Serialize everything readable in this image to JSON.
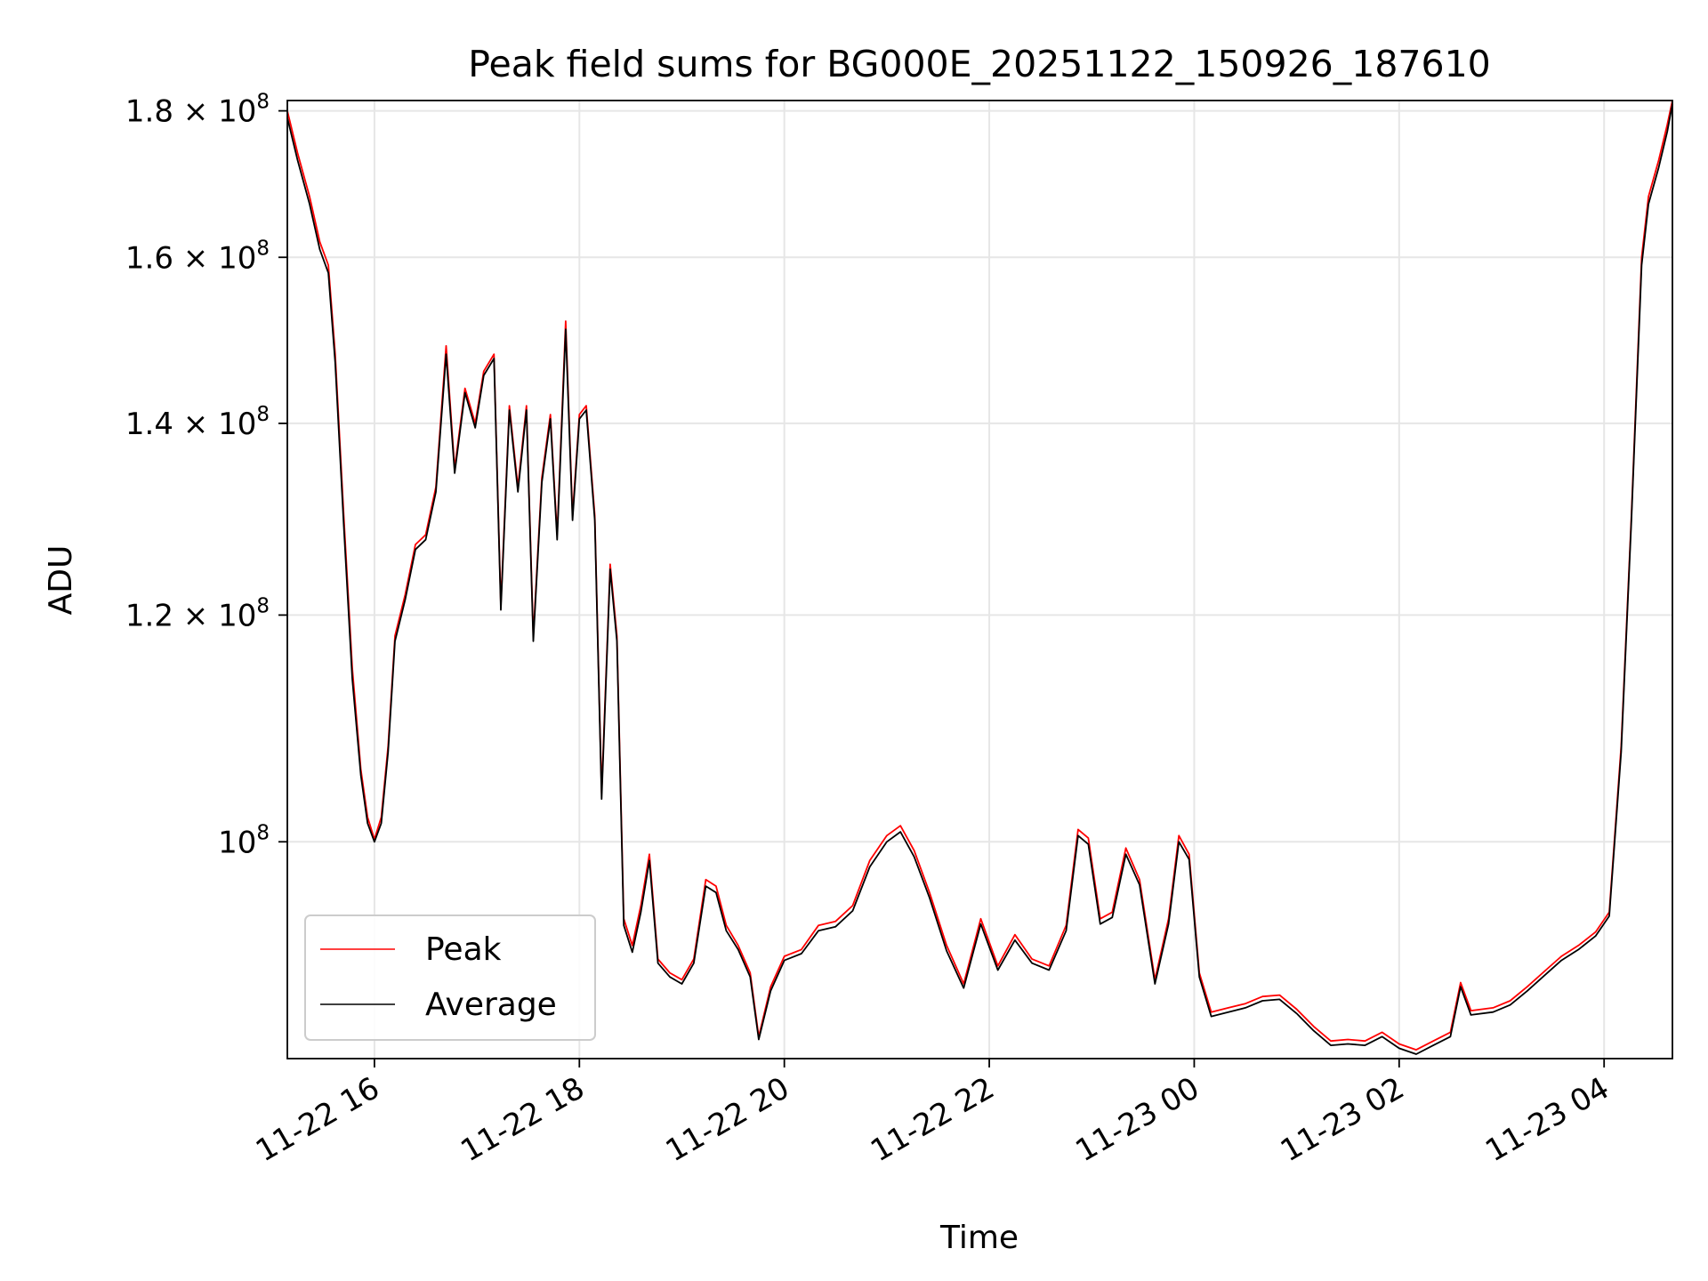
{
  "chart_data": {
    "type": "line",
    "title": "Peak field sums for BG000E_20251122_150926_187610",
    "xlabel": "Time",
    "ylabel": "ADU",
    "yscale": "log",
    "xlim": [
      "2025-11-22 15:09",
      "2025-11-23 04:40"
    ],
    "ylim": [
      84000000,
      181500000
    ],
    "xticks": [
      "11-22 16",
      "11-22 18",
      "11-22 20",
      "11-22 22",
      "11-23 00",
      "11-23 02",
      "11-23 04"
    ],
    "xtick_times": [
      "2025-11-22 16:00",
      "2025-11-22 18:00",
      "2025-11-22 20:00",
      "2025-11-22 22:00",
      "2025-11-23 00:00",
      "2025-11-23 02:00",
      "2025-11-23 04:00"
    ],
    "yticks": [
      {
        "value": 100000000,
        "mantissa": "",
        "exp": "8"
      },
      {
        "value": 120000000,
        "mantissa": "1.2",
        "exp": "8"
      },
      {
        "value": 140000000,
        "mantissa": "1.4",
        "exp": "8"
      },
      {
        "value": 160000000,
        "mantissa": "1.6",
        "exp": "8"
      },
      {
        "value": 180000000,
        "mantissa": "1.8",
        "exp": "8"
      }
    ],
    "grid": true,
    "legend_position": "lower-left",
    "series": [
      {
        "name": "Peak",
        "color": "#ff0000",
        "points": [
          [
            "2025-11-22 15:09",
            180000000
          ],
          [
            "2025-11-22 15:15",
            174000000
          ],
          [
            "2025-11-22 15:22",
            168000000
          ],
          [
            "2025-11-22 15:28",
            162000000
          ],
          [
            "2025-11-22 15:33",
            159000000
          ],
          [
            "2025-11-22 15:37",
            148000000
          ],
          [
            "2025-11-22 15:42",
            130000000
          ],
          [
            "2025-11-22 15:47",
            115000000
          ],
          [
            "2025-11-22 15:52",
            106000000
          ],
          [
            "2025-11-22 15:56",
            102000000
          ],
          [
            "2025-11-22 16:00",
            100200000
          ],
          [
            "2025-11-22 16:04",
            102000000
          ],
          [
            "2025-11-22 16:08",
            108000000
          ],
          [
            "2025-11-22 16:12",
            118000000
          ],
          [
            "2025-11-22 16:18",
            122000000
          ],
          [
            "2025-11-22 16:24",
            127000000
          ],
          [
            "2025-11-22 16:30",
            128000000
          ],
          [
            "2025-11-22 16:36",
            133000000
          ],
          [
            "2025-11-22 16:42",
            149000000
          ],
          [
            "2025-11-22 16:47",
            135000000
          ],
          [
            "2025-11-22 16:53",
            144000000
          ],
          [
            "2025-11-22 16:59",
            140000000
          ],
          [
            "2025-11-22 17:04",
            146000000
          ],
          [
            "2025-11-22 17:10",
            148000000
          ],
          [
            "2025-11-22 17:14",
            121000000
          ],
          [
            "2025-11-22 17:19",
            142000000
          ],
          [
            "2025-11-22 17:24",
            133000000
          ],
          [
            "2025-11-22 17:29",
            142000000
          ],
          [
            "2025-11-22 17:33",
            118000000
          ],
          [
            "2025-11-22 17:38",
            134000000
          ],
          [
            "2025-11-22 17:43",
            141000000
          ],
          [
            "2025-11-22 17:47",
            128000000
          ],
          [
            "2025-11-22 17:52",
            152000000
          ],
          [
            "2025-11-22 17:56",
            130000000
          ],
          [
            "2025-11-22 18:00",
            141000000
          ],
          [
            "2025-11-22 18:04",
            142000000
          ],
          [
            "2025-11-22 18:09",
            130000000
          ],
          [
            "2025-11-22 18:13",
            104000000
          ],
          [
            "2025-11-22 18:18",
            125000000
          ],
          [
            "2025-11-22 18:22",
            118000000
          ],
          [
            "2025-11-22 18:26",
            94000000
          ],
          [
            "2025-11-22 18:31",
            92000000
          ],
          [
            "2025-11-22 18:36",
            95000000
          ],
          [
            "2025-11-22 18:41",
            99000000
          ],
          [
            "2025-11-22 18:46",
            91000000
          ],
          [
            "2025-11-22 18:53",
            90000000
          ],
          [
            "2025-11-22 19:00",
            89500000
          ],
          [
            "2025-11-22 19:07",
            91000000
          ],
          [
            "2025-11-22 19:14",
            97000000
          ],
          [
            "2025-11-22 19:20",
            96500000
          ],
          [
            "2025-11-22 19:26",
            93500000
          ],
          [
            "2025-11-22 19:33",
            92000000
          ],
          [
            "2025-11-22 19:40",
            90000000
          ],
          [
            "2025-11-22 19:45",
            85500000
          ],
          [
            "2025-11-22 19:52",
            89000000
          ],
          [
            "2025-11-22 20:00",
            91200000
          ],
          [
            "2025-11-22 20:10",
            91700000
          ],
          [
            "2025-11-22 20:20",
            93500000
          ],
          [
            "2025-11-22 20:30",
            93800000
          ],
          [
            "2025-11-22 20:40",
            95000000
          ],
          [
            "2025-11-22 20:50",
            98500000
          ],
          [
            "2025-11-22 21:00",
            100500000
          ],
          [
            "2025-11-22 21:08",
            101300000
          ],
          [
            "2025-11-22 21:16",
            99300000
          ],
          [
            "2025-11-22 21:25",
            96000000
          ],
          [
            "2025-11-22 21:35",
            92000000
          ],
          [
            "2025-11-22 21:45",
            89200000
          ],
          [
            "2025-11-22 21:55",
            94000000
          ],
          [
            "2025-11-22 22:05",
            90500000
          ],
          [
            "2025-11-22 22:15",
            92800000
          ],
          [
            "2025-11-22 22:25",
            91000000
          ],
          [
            "2025-11-22 22:35",
            90500000
          ],
          [
            "2025-11-22 22:45",
            93500000
          ],
          [
            "2025-11-22 22:52",
            101000000
          ],
          [
            "2025-11-22 22:58",
            100300000
          ],
          [
            "2025-11-22 23:05",
            94000000
          ],
          [
            "2025-11-22 23:12",
            94500000
          ],
          [
            "2025-11-22 23:20",
            99500000
          ],
          [
            "2025-11-22 23:28",
            97000000
          ],
          [
            "2025-11-22 23:37",
            89500000
          ],
          [
            "2025-11-22 23:45",
            94000000
          ],
          [
            "2025-11-22 23:51",
            100500000
          ],
          [
            "2025-11-22 23:57",
            99000000
          ],
          [
            "2025-11-23 00:03",
            90000000
          ],
          [
            "2025-11-23 00:10",
            87200000
          ],
          [
            "2025-11-23 00:20",
            87500000
          ],
          [
            "2025-11-23 00:30",
            87800000
          ],
          [
            "2025-11-23 00:40",
            88300000
          ],
          [
            "2025-11-23 00:50",
            88400000
          ],
          [
            "2025-11-23 01:00",
            87400000
          ],
          [
            "2025-11-23 01:10",
            86200000
          ],
          [
            "2025-11-23 01:20",
            85200000
          ],
          [
            "2025-11-23 01:30",
            85300000
          ],
          [
            "2025-11-23 01:40",
            85200000
          ],
          [
            "2025-11-23 01:50",
            85800000
          ],
          [
            "2025-11-23 02:00",
            85000000
          ],
          [
            "2025-11-23 02:10",
            84600000
          ],
          [
            "2025-11-23 02:20",
            85200000
          ],
          [
            "2025-11-23 02:30",
            85800000
          ],
          [
            "2025-11-23 02:36",
            89300000
          ],
          [
            "2025-11-23 02:42",
            87300000
          ],
          [
            "2025-11-23 02:55",
            87500000
          ],
          [
            "2025-11-23 03:05",
            88000000
          ],
          [
            "2025-11-23 03:15",
            89000000
          ],
          [
            "2025-11-23 03:25",
            90100000
          ],
          [
            "2025-11-23 03:35",
            91200000
          ],
          [
            "2025-11-23 03:45",
            92000000
          ],
          [
            "2025-11-23 03:55",
            93000000
          ],
          [
            "2025-11-23 04:03",
            94500000
          ],
          [
            "2025-11-23 04:10",
            108000000
          ],
          [
            "2025-11-23 04:16",
            130000000
          ],
          [
            "2025-11-23 04:22",
            160000000
          ],
          [
            "2025-11-23 04:26",
            168000000
          ],
          [
            "2025-11-23 04:32",
            173000000
          ],
          [
            "2025-11-23 04:37",
            178000000
          ],
          [
            "2025-11-23 04:40",
            181500000
          ]
        ]
      },
      {
        "name": "Average",
        "color": "#000000",
        "points": [
          [
            "2025-11-22 15:09",
            179000000
          ],
          [
            "2025-11-22 15:15",
            173000000
          ],
          [
            "2025-11-22 15:22",
            167000000
          ],
          [
            "2025-11-22 15:28",
            161000000
          ],
          [
            "2025-11-22 15:33",
            158000000
          ],
          [
            "2025-11-22 15:37",
            147000000
          ],
          [
            "2025-11-22 15:42",
            129000000
          ],
          [
            "2025-11-22 15:47",
            114000000
          ],
          [
            "2025-11-22 15:52",
            105500000
          ],
          [
            "2025-11-22 15:56",
            101500000
          ],
          [
            "2025-11-22 16:00",
            100000000
          ],
          [
            "2025-11-22 16:04",
            101500000
          ],
          [
            "2025-11-22 16:08",
            107500000
          ],
          [
            "2025-11-22 16:12",
            117500000
          ],
          [
            "2025-11-22 16:18",
            121500000
          ],
          [
            "2025-11-22 16:24",
            126500000
          ],
          [
            "2025-11-22 16:30",
            127500000
          ],
          [
            "2025-11-22 16:36",
            132500000
          ],
          [
            "2025-11-22 16:42",
            148000000
          ],
          [
            "2025-11-22 16:47",
            134500000
          ],
          [
            "2025-11-22 16:53",
            143500000
          ],
          [
            "2025-11-22 16:59",
            139500000
          ],
          [
            "2025-11-22 17:04",
            145500000
          ],
          [
            "2025-11-22 17:10",
            147500000
          ],
          [
            "2025-11-22 17:14",
            120500000
          ],
          [
            "2025-11-22 17:19",
            141500000
          ],
          [
            "2025-11-22 17:24",
            132500000
          ],
          [
            "2025-11-22 17:29",
            141500000
          ],
          [
            "2025-11-22 17:33",
            117500000
          ],
          [
            "2025-11-22 17:38",
            133500000
          ],
          [
            "2025-11-22 17:43",
            140500000
          ],
          [
            "2025-11-22 17:47",
            127500000
          ],
          [
            "2025-11-22 17:52",
            151000000
          ],
          [
            "2025-11-22 17:56",
            129500000
          ],
          [
            "2025-11-22 18:00",
            140500000
          ],
          [
            "2025-11-22 18:04",
            141500000
          ],
          [
            "2025-11-22 18:09",
            129500000
          ],
          [
            "2025-11-22 18:13",
            103500000
          ],
          [
            "2025-11-22 18:18",
            124500000
          ],
          [
            "2025-11-22 18:22",
            117500000
          ],
          [
            "2025-11-22 18:26",
            93500000
          ],
          [
            "2025-11-22 18:31",
            91500000
          ],
          [
            "2025-11-22 18:36",
            94500000
          ],
          [
            "2025-11-22 18:41",
            98500000
          ],
          [
            "2025-11-22 18:46",
            90700000
          ],
          [
            "2025-11-22 18:53",
            89700000
          ],
          [
            "2025-11-22 19:00",
            89200000
          ],
          [
            "2025-11-22 19:07",
            90700000
          ],
          [
            "2025-11-22 19:14",
            96500000
          ],
          [
            "2025-11-22 19:20",
            96000000
          ],
          [
            "2025-11-22 19:26",
            93100000
          ],
          [
            "2025-11-22 19:33",
            91700000
          ],
          [
            "2025-11-22 19:40",
            89700000
          ],
          [
            "2025-11-22 19:45",
            85300000
          ],
          [
            "2025-11-22 19:52",
            88700000
          ],
          [
            "2025-11-22 20:00",
            90900000
          ],
          [
            "2025-11-22 20:10",
            91400000
          ],
          [
            "2025-11-22 20:20",
            93100000
          ],
          [
            "2025-11-22 20:30",
            93400000
          ],
          [
            "2025-11-22 20:40",
            94600000
          ],
          [
            "2025-11-22 20:50",
            98000000
          ],
          [
            "2025-11-22 21:00",
            100000000
          ],
          [
            "2025-11-22 21:08",
            100800000
          ],
          [
            "2025-11-22 21:16",
            98800000
          ],
          [
            "2025-11-22 21:25",
            95600000
          ],
          [
            "2025-11-22 21:35",
            91600000
          ],
          [
            "2025-11-22 21:45",
            88900000
          ],
          [
            "2025-11-22 21:55",
            93600000
          ],
          [
            "2025-11-22 22:05",
            90200000
          ],
          [
            "2025-11-22 22:15",
            92400000
          ],
          [
            "2025-11-22 22:25",
            90700000
          ],
          [
            "2025-11-22 22:35",
            90200000
          ],
          [
            "2025-11-22 22:45",
            93100000
          ],
          [
            "2025-11-22 22:52",
            100500000
          ],
          [
            "2025-11-22 22:58",
            99800000
          ],
          [
            "2025-11-22 23:05",
            93600000
          ],
          [
            "2025-11-22 23:12",
            94100000
          ],
          [
            "2025-11-22 23:20",
            99000000
          ],
          [
            "2025-11-22 23:28",
            96600000
          ],
          [
            "2025-11-22 23:37",
            89200000
          ],
          [
            "2025-11-22 23:45",
            93600000
          ],
          [
            "2025-11-22 23:51",
            100000000
          ],
          [
            "2025-11-22 23:57",
            98600000
          ],
          [
            "2025-11-23 00:03",
            89700000
          ],
          [
            "2025-11-23 00:10",
            86900000
          ],
          [
            "2025-11-23 00:20",
            87200000
          ],
          [
            "2025-11-23 00:30",
            87500000
          ],
          [
            "2025-11-23 00:40",
            88000000
          ],
          [
            "2025-11-23 00:50",
            88100000
          ],
          [
            "2025-11-23 01:00",
            87100000
          ],
          [
            "2025-11-23 01:10",
            85900000
          ],
          [
            "2025-11-23 01:20",
            84900000
          ],
          [
            "2025-11-23 01:30",
            85000000
          ],
          [
            "2025-11-23 01:40",
            84900000
          ],
          [
            "2025-11-23 01:50",
            85500000
          ],
          [
            "2025-11-23 02:00",
            84700000
          ],
          [
            "2025-11-23 02:10",
            84300000
          ],
          [
            "2025-11-23 02:20",
            84900000
          ],
          [
            "2025-11-23 02:30",
            85500000
          ],
          [
            "2025-11-23 02:36",
            89000000
          ],
          [
            "2025-11-23 02:42",
            87000000
          ],
          [
            "2025-11-23 02:55",
            87200000
          ],
          [
            "2025-11-23 03:05",
            87700000
          ],
          [
            "2025-11-23 03:15",
            88700000
          ],
          [
            "2025-11-23 03:25",
            89800000
          ],
          [
            "2025-11-23 03:35",
            90900000
          ],
          [
            "2025-11-23 03:45",
            91700000
          ],
          [
            "2025-11-23 03:55",
            92700000
          ],
          [
            "2025-11-23 04:03",
            94200000
          ],
          [
            "2025-11-23 04:10",
            107500000
          ],
          [
            "2025-11-23 04:16",
            129500000
          ],
          [
            "2025-11-23 04:22",
            159000000
          ],
          [
            "2025-11-23 04:26",
            167000000
          ],
          [
            "2025-11-23 04:32",
            172000000
          ],
          [
            "2025-11-23 04:37",
            177000000
          ],
          [
            "2025-11-23 04:40",
            181000000
          ]
        ]
      }
    ]
  }
}
